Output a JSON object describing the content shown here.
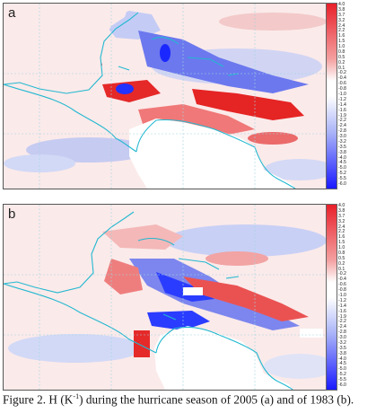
{
  "panels": [
    {
      "label": "a"
    },
    {
      "label": "b"
    }
  ],
  "colorbar": {
    "ticks": [
      "4.0",
      "3.8",
      "3.7",
      "3.2",
      "2.4",
      "2.2",
      "1.6",
      "1.5",
      "1.0",
      "0.8",
      "0.5",
      "0.2",
      "0.1",
      "-0.2",
      "-0.4",
      "-0.6",
      "-0.8",
      "-1.0",
      "-1.2",
      "-1.4",
      "-1.6",
      "-1.9",
      "-2.2",
      "-2.4",
      "-2.8",
      "-3.0",
      "-3.2",
      "-3.5",
      "-3.8",
      "-4.0",
      "-4.5",
      "-5.0",
      "-5.2",
      "-5.5",
      "-6.0"
    ],
    "colors": {
      "max": "#e8202a",
      "mid": "#ffffff",
      "min": "#1a1aff"
    }
  },
  "caption": {
    "prefix": "Figure 2. H (K",
    "superscript": "-1",
    "suffix": ") during the hurricane season of 2005 (a) and of 1983 (b)."
  },
  "colors": {
    "coast": "#22b8d0",
    "grid": "#9fd4e0",
    "red": "#e63030",
    "blue": "#2a3cff",
    "land": "#ffffff"
  }
}
